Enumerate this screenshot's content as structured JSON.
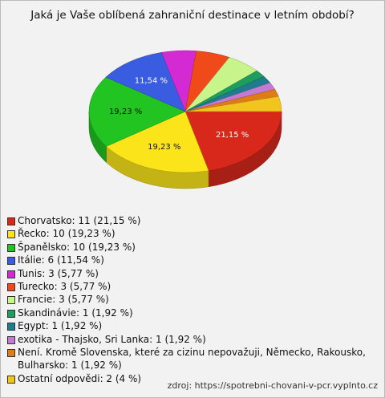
{
  "chart_data": {
    "type": "pie",
    "title": "Jaká je Vaše oblíbená zahraniční destinace v letním období?",
    "categories": [
      "Chorvatsko: 11 (21,15 %)",
      "Řecko: 10 (19,23 %)",
      "Španělsko: 10 (19,23 %)",
      "Itálie: 6 (11,54 %)",
      "Tunis: 3 (5,77 %)",
      "Turecko: 3 (5,77 %)",
      "Francie: 3 (5,77 %)",
      "Skandinávie: 1 (1,92 %)",
      "Egypt: 1 (1,92 %)",
      "exotika - Thajsko, Sri Lanka: 1 (1,92 %)",
      "Není. Kromě Slovenska, které za cizinu nepovažuji, Německo, Rakousko, Bulharsko: 1 (1,92 %)",
      "Ostatní odpovědi: 2 (4 %)"
    ],
    "values": [
      21.15,
      19.23,
      19.23,
      11.54,
      5.77,
      5.77,
      5.77,
      1.92,
      1.92,
      1.92,
      1.92,
      4
    ],
    "value_labels": [
      "21,15 %",
      "19,23 %",
      "19,23 %",
      "11,54 %",
      null,
      null,
      null,
      null,
      null,
      null,
      null,
      null
    ],
    "colors": [
      "#d8281c",
      "#fbe51a",
      "#22c422",
      "#3a5ce0",
      "#d42ad4",
      "#f04a1a",
      "#c8f48c",
      "#1e9e5e",
      "#1e7c8c",
      "#c47ad0",
      "#e07c16",
      "#f2c41e"
    ],
    "legend": "bottom-left",
    "source": "zdroj: https://spotrebni-chovani-v-pcr.vyplnto.cz"
  }
}
